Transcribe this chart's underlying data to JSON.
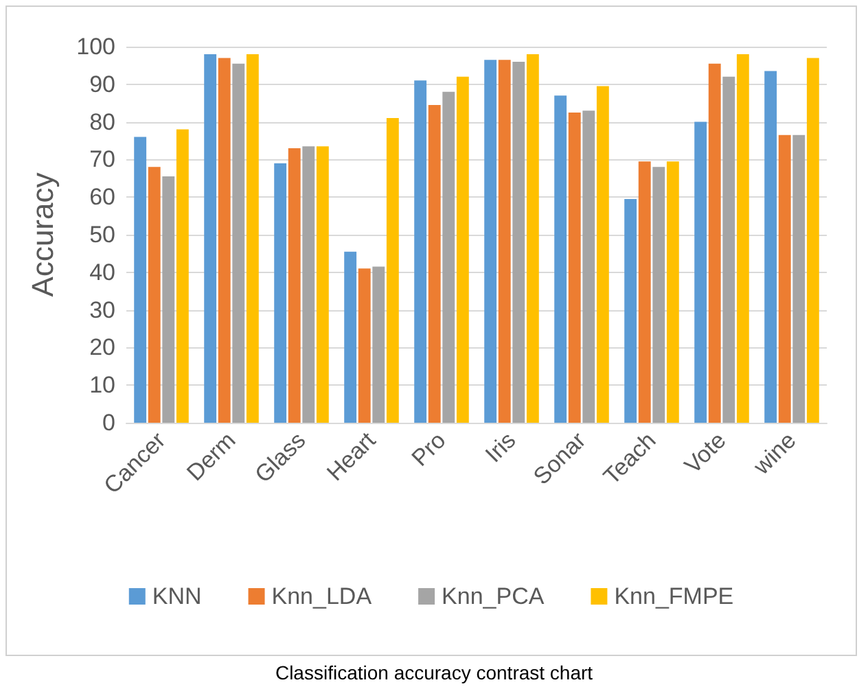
{
  "chart_data": {
    "type": "bar",
    "ylabel": "Accuracy",
    "categories": [
      "Cancer",
      "Derm",
      "Glass",
      "Heart",
      "Pro",
      "Iris",
      "Sonar",
      "Teach",
      "Vote",
      "wine"
    ],
    "series": [
      {
        "name": "KNN",
        "color": "#5b9bd5",
        "values": [
          76,
          98,
          69,
          45.5,
          91,
          96.5,
          87,
          59.5,
          80,
          93.5
        ]
      },
      {
        "name": "Knn_LDA",
        "color": "#ed7d31",
        "values": [
          68,
          97,
          73,
          41,
          84.5,
          96.5,
          82.5,
          69.5,
          95.5,
          76.5
        ]
      },
      {
        "name": "Knn_PCA",
        "color": "#a5a5a5",
        "values": [
          65.5,
          95.5,
          73.5,
          41.5,
          88,
          96,
          83,
          68,
          92,
          76.5
        ]
      },
      {
        "name": "Knn_FMPE",
        "color": "#ffc000",
        "values": [
          78,
          98,
          73.5,
          81,
          92,
          98,
          89.5,
          69.5,
          98,
          97
        ]
      }
    ],
    "ylim": [
      0,
      100
    ],
    "yticks": [
      0,
      10,
      20,
      30,
      40,
      50,
      60,
      70,
      80,
      90,
      100
    ],
    "grid": "y",
    "legend": "bottom",
    "annotations": [
      "Classification accuracy contrast chart"
    ]
  }
}
